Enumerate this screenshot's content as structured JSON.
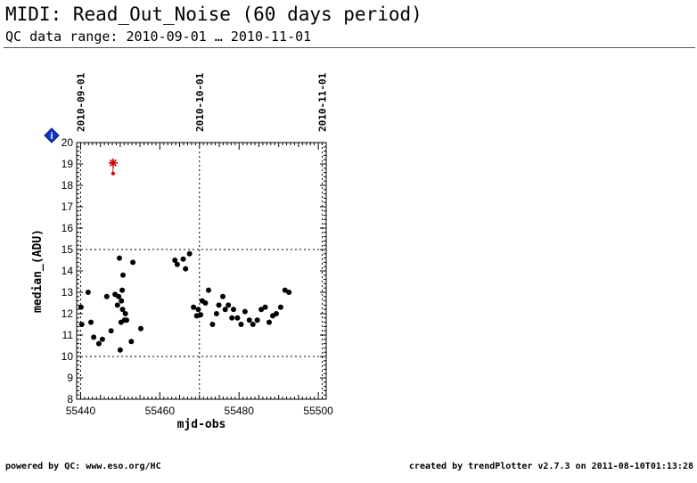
{
  "header": {
    "title": "MIDI: Read_Out_Noise (60 days period)",
    "subtitle": "QC data range: 2010-09-01 … 2010-11-01"
  },
  "footer": {
    "left": "powered by QC: www.eso.org/HC",
    "right": "created by trendPlotter v2.7.3 on 2011-08-10T01:13:28"
  },
  "chart_data": {
    "type": "scatter",
    "title": "",
    "xlabel": "mjd-obs",
    "ylabel": "median_(ADU)",
    "xlim": [
      55439,
      55502
    ],
    "ylim": [
      8,
      20
    ],
    "x_ticks": [
      55440,
      55460,
      55480,
      55500
    ],
    "y_ticks": [
      8,
      9,
      10,
      11,
      12,
      13,
      14,
      15,
      16,
      17,
      18,
      19,
      20
    ],
    "date_markers": [
      {
        "x": 55440,
        "label": "2010-09-01"
      },
      {
        "x": 55470,
        "label": "2010-10-01"
      },
      {
        "x": 55501,
        "label": "2010-11-01"
      }
    ],
    "reference_lines": [
      10,
      15
    ],
    "colors": {
      "points": "#000000",
      "outlier": "#cc0000",
      "info_marker": "#1133cc"
    },
    "series": [
      {
        "points": [
          [
            55440.1,
            12.3
          ],
          [
            55440.3,
            11.5
          ],
          [
            55441.9,
            13.0
          ],
          [
            55442.6,
            11.6
          ],
          [
            55443.3,
            10.9
          ],
          [
            55444.6,
            10.6
          ],
          [
            55445.5,
            10.8
          ],
          [
            55446.6,
            12.8
          ],
          [
            55447.7,
            11.2
          ],
          [
            55448.7,
            12.9
          ],
          [
            55449.3,
            12.4
          ],
          [
            55449.6,
            12.8
          ],
          [
            55449.8,
            14.6
          ],
          [
            55450.0,
            10.3
          ],
          [
            55450.2,
            11.6
          ],
          [
            55450.3,
            12.6
          ],
          [
            55450.5,
            13.1
          ],
          [
            55450.6,
            12.2
          ],
          [
            55450.7,
            13.8
          ],
          [
            55451.1,
            11.7
          ],
          [
            55451.3,
            12.0
          ],
          [
            55451.6,
            11.7
          ],
          [
            55452.8,
            10.7
          ],
          [
            55453.2,
            14.4
          ],
          [
            55455.2,
            11.3
          ],
          [
            55463.8,
            14.5
          ],
          [
            55464.4,
            14.3
          ],
          [
            55465.9,
            14.55
          ],
          [
            55466.5,
            14.1
          ],
          [
            55467.5,
            14.8
          ],
          [
            55468.5,
            12.3
          ],
          [
            55469.3,
            11.9
          ],
          [
            55469.7,
            12.2
          ],
          [
            55470.3,
            11.95
          ],
          [
            55470.7,
            12.6
          ],
          [
            55471.5,
            12.5
          ],
          [
            55472.3,
            13.1
          ],
          [
            55473.3,
            11.5
          ],
          [
            55474.3,
            12.0
          ],
          [
            55474.9,
            12.4
          ],
          [
            55475.9,
            12.8
          ],
          [
            55476.5,
            12.2
          ],
          [
            55477.3,
            12.4
          ],
          [
            55478.2,
            11.8
          ],
          [
            55478.6,
            12.2
          ],
          [
            55479.6,
            11.8
          ],
          [
            55480.5,
            11.5
          ],
          [
            55481.5,
            12.1
          ],
          [
            55482.6,
            11.7
          ],
          [
            55483.5,
            11.5
          ],
          [
            55484.6,
            11.7
          ],
          [
            55485.6,
            12.2
          ],
          [
            55486.6,
            12.3
          ],
          [
            55487.6,
            11.6
          ],
          [
            55488.5,
            11.9
          ],
          [
            55489.4,
            12.0
          ],
          [
            55490.5,
            12.3
          ],
          [
            55491.6,
            13.1
          ],
          [
            55492.6,
            13.0
          ]
        ]
      }
    ],
    "outliers": [
      {
        "x": 55448.2,
        "y": 19.05
      },
      {
        "x": 55448.2,
        "y": 18.55
      }
    ]
  }
}
